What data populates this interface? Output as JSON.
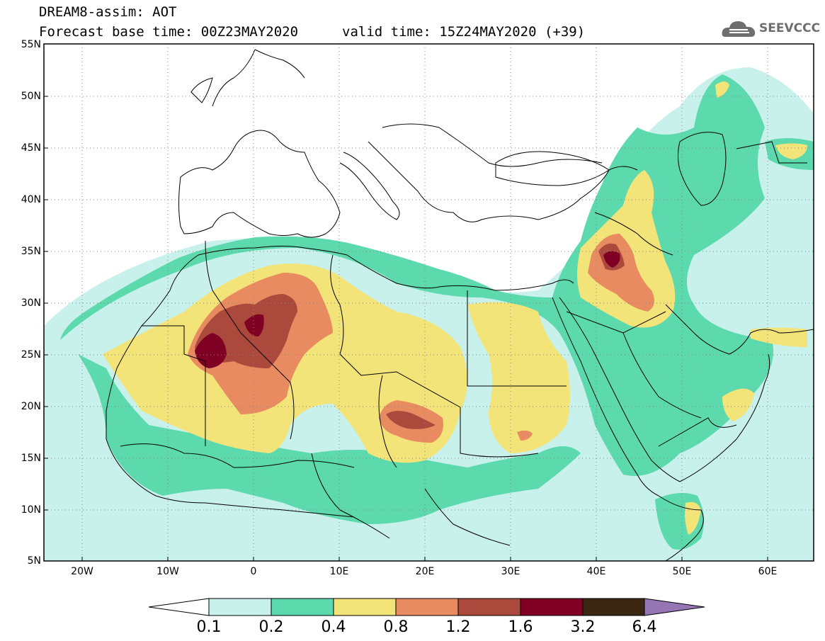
{
  "header": {
    "line1": "DREAM8-assim: AOT",
    "line2_left": "Forecast base time: 00Z23MAY2020",
    "line2_right": "valid time: 15Z24MAY2020 (+39)"
  },
  "logo": {
    "text": "SEEVCCC",
    "icon": "cloud-icon"
  },
  "map": {
    "lon_range": [
      -25,
      65
    ],
    "lat_range": [
      5,
      55
    ],
    "lat_labels": [
      "55N",
      "50N",
      "45N",
      "40N",
      "35N",
      "30N",
      "25N",
      "20N",
      "15N",
      "10N",
      "5N"
    ],
    "lon_labels": [
      "20W",
      "10W",
      "0",
      "10E",
      "20E",
      "30E",
      "40E",
      "50E",
      "60E"
    ]
  },
  "colorbar": {
    "thresholds": [
      "0.1",
      "0.2",
      "0.4",
      "0.8",
      "1.2",
      "1.6",
      "3.2",
      "6.4"
    ],
    "colors": [
      "#ffffff",
      "#c8f1eb",
      "#5cd9ad",
      "#f3e47a",
      "#e98b60",
      "#ab4a3c",
      "#800024",
      "#3b2611",
      "#9675b5"
    ]
  }
}
